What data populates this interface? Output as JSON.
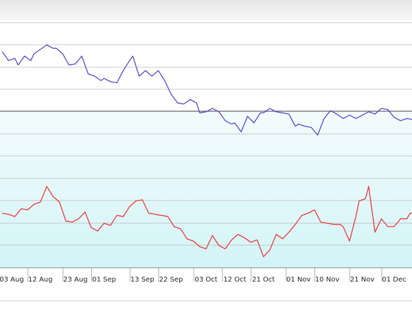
{
  "chart_data": {
    "type": "line",
    "title": "",
    "xlabel": "",
    "ylabel": "",
    "grid": true,
    "x_range": [
      "2023-07-30",
      "2023-12-10"
    ],
    "y_range": [
      0,
      11
    ],
    "tick_labels": [
      {
        "date": "2023-08-03",
        "label": "03 Aug"
      },
      {
        "date": "2023-08-12",
        "label": "12 Aug"
      },
      {
        "date": "2023-08-23",
        "label": "23 Aug"
      },
      {
        "date": "2023-09-01",
        "label": "01 Sep"
      },
      {
        "date": "2023-09-13",
        "label": "13 Sep"
      },
      {
        "date": "2023-09-22",
        "label": "22 Sep"
      },
      {
        "date": "2023-10-03",
        "label": "03 Oct"
      },
      {
        "date": "2023-10-12",
        "label": "12 Oct"
      },
      {
        "date": "2023-10-21",
        "label": "21 Oct"
      },
      {
        "date": "2023-11-01",
        "label": "01 Nov"
      },
      {
        "date": "2023-11-10",
        "label": "10 Nov"
      },
      {
        "date": "2023-11-21",
        "label": "21 Nov"
      },
      {
        "date": "2023-12-01",
        "label": "01 Dec"
      }
    ],
    "series": [
      {
        "color": "#5544cc",
        "points": [
          [
            "2023-07-31",
            9.7
          ],
          [
            "2023-08-02",
            9.3
          ],
          [
            "2023-08-04",
            9.4
          ],
          [
            "2023-08-05",
            9.1
          ],
          [
            "2023-08-07",
            9.5
          ],
          [
            "2023-08-09",
            9.3
          ],
          [
            "2023-08-10",
            9.6
          ],
          [
            "2023-08-12",
            9.8
          ],
          [
            "2023-08-14",
            10.0
          ],
          [
            "2023-08-16",
            9.85
          ],
          [
            "2023-08-17",
            9.85
          ],
          [
            "2023-08-19",
            9.6
          ],
          [
            "2023-08-21",
            9.1
          ],
          [
            "2023-08-23",
            9.15
          ],
          [
            "2023-08-25",
            9.5
          ],
          [
            "2023-08-27",
            8.7
          ],
          [
            "2023-08-29",
            8.6
          ],
          [
            "2023-08-31",
            8.4
          ],
          [
            "2023-09-01",
            8.5
          ],
          [
            "2023-09-03",
            8.35
          ],
          [
            "2023-09-05",
            8.3
          ],
          [
            "2023-09-07",
            8.85
          ],
          [
            "2023-09-09",
            9.3
          ],
          [
            "2023-09-10",
            9.5
          ],
          [
            "2023-09-12",
            8.6
          ],
          [
            "2023-09-14",
            8.85
          ],
          [
            "2023-09-16",
            8.6
          ],
          [
            "2023-09-18",
            8.85
          ],
          [
            "2023-09-20",
            8.4
          ],
          [
            "2023-09-22",
            7.8
          ],
          [
            "2023-09-24",
            7.4
          ],
          [
            "2023-09-26",
            7.35
          ],
          [
            "2023-09-28",
            7.55
          ],
          [
            "2023-09-30",
            7.4
          ],
          [
            "2023-10-01",
            6.95
          ],
          [
            "2023-10-03",
            7.0
          ],
          [
            "2023-10-05",
            7.15
          ],
          [
            "2023-10-07",
            7.0
          ],
          [
            "2023-10-09",
            6.6
          ],
          [
            "2023-10-11",
            6.45
          ],
          [
            "2023-10-12",
            6.5
          ],
          [
            "2023-10-14",
            6.1
          ],
          [
            "2023-10-16",
            6.8
          ],
          [
            "2023-10-18",
            6.5
          ],
          [
            "2023-10-20",
            6.95
          ],
          [
            "2023-10-21",
            6.95
          ],
          [
            "2023-10-23",
            7.15
          ],
          [
            "2023-10-25",
            7.0
          ],
          [
            "2023-10-27",
            6.95
          ],
          [
            "2023-10-29",
            6.9
          ],
          [
            "2023-10-31",
            6.35
          ],
          [
            "2023-11-01",
            6.45
          ],
          [
            "2023-11-03",
            6.35
          ],
          [
            "2023-11-05",
            6.3
          ],
          [
            "2023-11-07",
            5.95
          ],
          [
            "2023-11-09",
            6.7
          ],
          [
            "2023-11-11",
            7.05
          ],
          [
            "2023-11-13",
            6.9
          ],
          [
            "2023-11-15",
            6.7
          ],
          [
            "2023-11-17",
            6.85
          ],
          [
            "2023-11-19",
            6.7
          ],
          [
            "2023-11-21",
            6.85
          ],
          [
            "2023-11-23",
            7.0
          ],
          [
            "2023-11-25",
            6.9
          ],
          [
            "2023-11-27",
            7.15
          ],
          [
            "2023-11-29",
            7.1
          ],
          [
            "2023-12-01",
            6.75
          ],
          [
            "2023-12-03",
            6.6
          ],
          [
            "2023-12-05",
            6.7
          ],
          [
            "2023-12-07",
            6.65
          ],
          [
            "2023-12-10",
            6.7
          ]
        ]
      },
      {
        "color": "#ee3333",
        "points": [
          [
            "2023-07-31",
            2.45
          ],
          [
            "2023-08-02",
            2.4
          ],
          [
            "2023-08-04",
            2.3
          ],
          [
            "2023-08-06",
            2.65
          ],
          [
            "2023-08-08",
            2.6
          ],
          [
            "2023-08-10",
            2.85
          ],
          [
            "2023-08-12",
            2.95
          ],
          [
            "2023-08-14",
            3.65
          ],
          [
            "2023-08-16",
            3.2
          ],
          [
            "2023-08-18",
            2.95
          ],
          [
            "2023-08-20",
            2.1
          ],
          [
            "2023-08-22",
            2.05
          ],
          [
            "2023-08-24",
            2.2
          ],
          [
            "2023-08-26",
            2.5
          ],
          [
            "2023-08-28",
            1.8
          ],
          [
            "2023-08-30",
            1.65
          ],
          [
            "2023-09-01",
            2.0
          ],
          [
            "2023-09-03",
            1.9
          ],
          [
            "2023-09-05",
            2.35
          ],
          [
            "2023-09-07",
            2.3
          ],
          [
            "2023-09-09",
            2.75
          ],
          [
            "2023-09-11",
            3.0
          ],
          [
            "2023-09-13",
            3.05
          ],
          [
            "2023-09-15",
            2.45
          ],
          [
            "2023-09-17",
            2.4
          ],
          [
            "2023-09-19",
            2.35
          ],
          [
            "2023-09-21",
            2.3
          ],
          [
            "2023-09-23",
            1.85
          ],
          [
            "2023-09-25",
            1.75
          ],
          [
            "2023-09-27",
            1.3
          ],
          [
            "2023-09-29",
            1.2
          ],
          [
            "2023-10-01",
            0.95
          ],
          [
            "2023-10-03",
            0.85
          ],
          [
            "2023-10-05",
            1.45
          ],
          [
            "2023-10-07",
            1.0
          ],
          [
            "2023-10-09",
            0.85
          ],
          [
            "2023-10-11",
            1.25
          ],
          [
            "2023-10-13",
            1.5
          ],
          [
            "2023-10-15",
            1.35
          ],
          [
            "2023-10-17",
            1.15
          ],
          [
            "2023-10-19",
            1.25
          ],
          [
            "2023-10-21",
            0.5
          ],
          [
            "2023-10-23",
            0.8
          ],
          [
            "2023-10-25",
            1.5
          ],
          [
            "2023-10-27",
            1.3
          ],
          [
            "2023-10-29",
            1.6
          ],
          [
            "2023-10-31",
            1.95
          ],
          [
            "2023-11-02",
            2.35
          ],
          [
            "2023-11-04",
            2.45
          ],
          [
            "2023-11-06",
            2.6
          ],
          [
            "2023-11-08",
            2.05
          ],
          [
            "2023-11-10",
            2.0
          ],
          [
            "2023-11-12",
            1.95
          ],
          [
            "2023-11-14",
            1.95
          ],
          [
            "2023-11-15",
            1.85
          ],
          [
            "2023-11-17",
            1.2
          ],
          [
            "2023-11-19",
            2.3
          ],
          [
            "2023-11-20",
            3.0
          ],
          [
            "2023-11-22",
            3.1
          ],
          [
            "2023-11-23",
            3.65
          ],
          [
            "2023-11-25",
            1.6
          ],
          [
            "2023-11-27",
            2.2
          ],
          [
            "2023-11-29",
            1.85
          ],
          [
            "2023-12-01",
            1.85
          ],
          [
            "2023-12-03",
            2.2
          ],
          [
            "2023-12-05",
            2.2
          ],
          [
            "2023-12-06",
            2.45
          ],
          [
            "2023-12-08",
            2.5
          ],
          [
            "2023-12-09",
            2.6
          ]
        ]
      }
    ]
  }
}
